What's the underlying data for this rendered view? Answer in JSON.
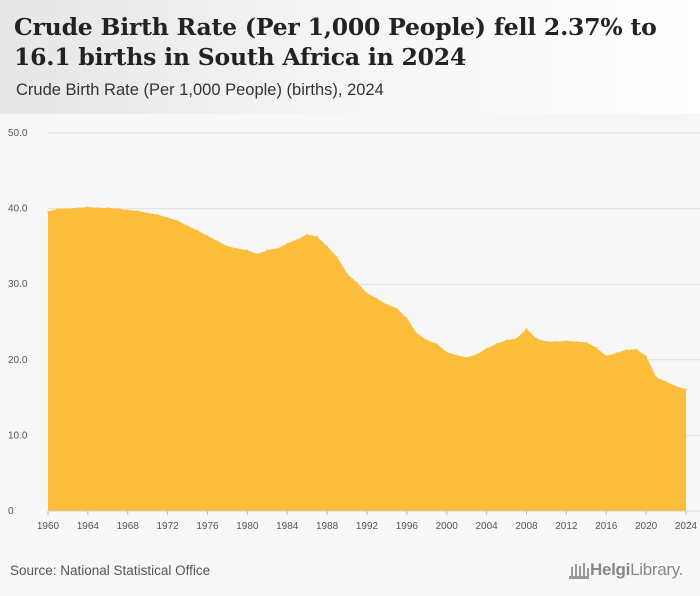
{
  "header": {
    "title": "Crude Birth Rate (Per 1,000 People) fell 2.37% to 16.1 births in South Africa in 2024",
    "subtitle": "Crude Birth Rate (Per 1,000 People) (births), 2024"
  },
  "footer": {
    "source": "Source: National Statistical Office",
    "logo_bold": "Helgi",
    "logo_light": "Library."
  },
  "colors": {
    "fill": "#fbbd3a",
    "grid": "#e2e2e2",
    "text": "#555555"
  },
  "chart_data": {
    "type": "area",
    "x": [
      1960,
      1961,
      1962,
      1963,
      1964,
      1965,
      1966,
      1967,
      1968,
      1969,
      1970,
      1971,
      1972,
      1973,
      1974,
      1975,
      1976,
      1977,
      1978,
      1979,
      1980,
      1981,
      1982,
      1983,
      1984,
      1985,
      1986,
      1987,
      1988,
      1989,
      1990,
      1991,
      1992,
      1993,
      1994,
      1995,
      1996,
      1997,
      1998,
      1999,
      2000,
      2001,
      2002,
      2003,
      2004,
      2005,
      2006,
      2007,
      2008,
      2009,
      2010,
      2011,
      2012,
      2013,
      2014,
      2015,
      2016,
      2017,
      2018,
      2019,
      2020,
      2021,
      2022,
      2023,
      2024
    ],
    "values": [
      39.6,
      40.0,
      40.0,
      40.1,
      40.2,
      40.1,
      40.1,
      40.0,
      39.8,
      39.7,
      39.4,
      39.2,
      38.8,
      38.4,
      37.7,
      37.1,
      36.4,
      35.7,
      35.0,
      34.7,
      34.5,
      34.0,
      34.5,
      34.7,
      35.4,
      35.9,
      36.6,
      36.3,
      35.0,
      33.6,
      31.4,
      30.2,
      28.8,
      28.1,
      27.3,
      26.8,
      25.5,
      23.5,
      22.6,
      22.1,
      21.0,
      20.6,
      20.3,
      20.7,
      21.5,
      22.1,
      22.6,
      22.8,
      24.1,
      22.8,
      22.4,
      22.4,
      22.5,
      22.4,
      22.3,
      21.6,
      20.5,
      20.9,
      21.3,
      21.4,
      20.5,
      17.7,
      17.1,
      16.5,
      16.1
    ],
    "x_ticks": [
      "1960",
      "1964",
      "1968",
      "1972",
      "1976",
      "1980",
      "1984",
      "1988",
      "1992",
      "1996",
      "2000",
      "2004",
      "2008",
      "2012",
      "2016",
      "2020",
      "2024"
    ],
    "y_ticks": [
      "0",
      "10.0",
      "20.0",
      "30.0",
      "40.0",
      "50.0"
    ],
    "ylim": [
      0,
      50
    ],
    "xlim": [
      1960,
      2024
    ],
    "grid": true
  }
}
